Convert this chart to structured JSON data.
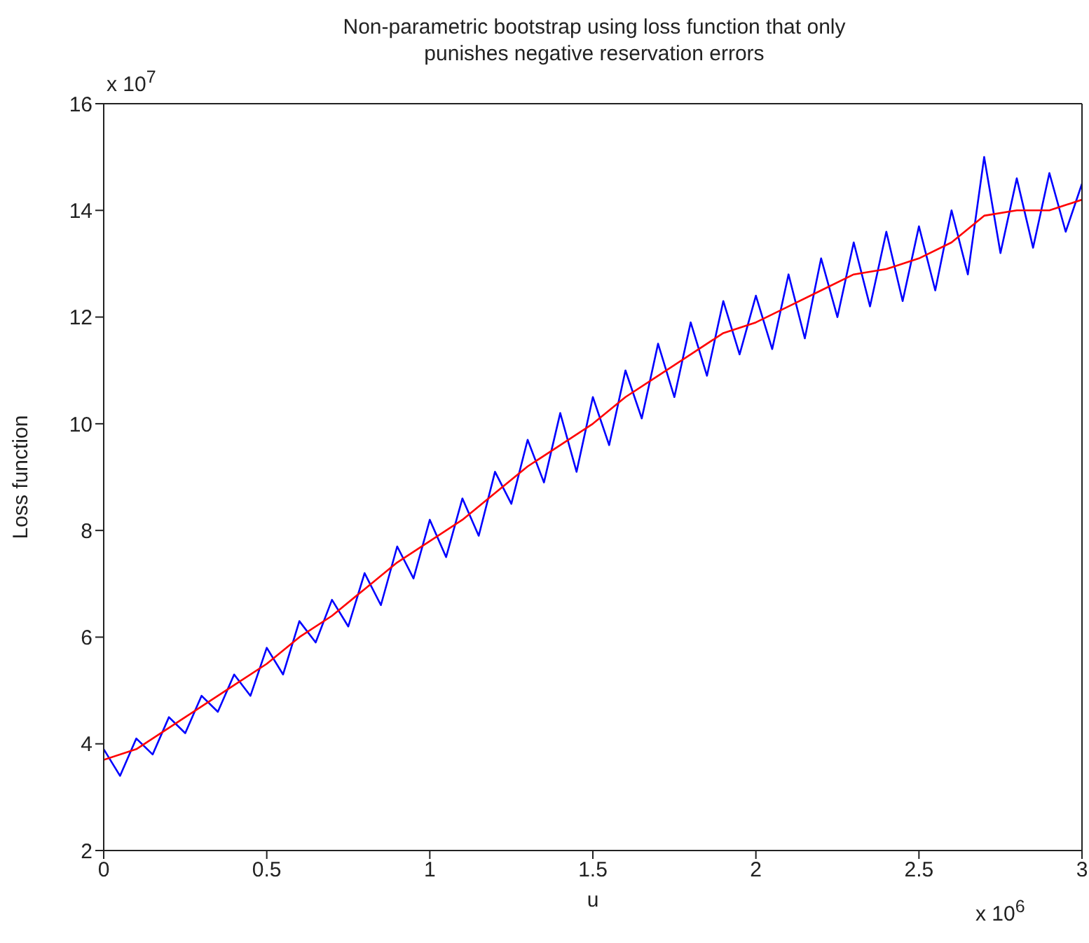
{
  "chart_data": {
    "type": "line",
    "title": "Non-parametric bootstrap using loss function that only punishes negative reservation errors",
    "xlabel": "u",
    "ylabel": "Loss function",
    "annotations": [
      "x 10$^{7}$",
      "x 10$^{6}$"
    ],
    "xlim": [
      0,
      3
    ],
    "xticks": [
      0,
      0.5,
      1,
      1.5,
      2,
      2.5,
      3
    ],
    "ylim": [
      2,
      16
    ],
    "yticks": [
      2,
      4,
      6,
      8,
      10,
      12,
      14,
      16
    ],
    "legend": false,
    "marker": "none",
    "line_style": "solid",
    "series": [
      {
        "color": "#0000ff",
        "x": [
          0,
          0.05,
          0.1,
          0.15,
          0.2,
          0.25,
          0.3,
          0.35,
          0.4,
          0.45,
          0.5,
          0.55,
          0.6,
          0.65,
          0.7,
          0.75,
          0.8,
          0.85,
          0.9,
          0.95,
          1.0,
          1.05,
          1.1,
          1.15,
          1.2,
          1.25,
          1.3,
          1.35,
          1.4,
          1.45,
          1.5,
          1.55,
          1.6,
          1.65,
          1.7,
          1.75,
          1.8,
          1.85,
          1.9,
          1.95,
          2.0,
          2.05,
          2.1,
          2.15,
          2.2,
          2.25,
          2.3,
          2.35,
          2.4,
          2.45,
          2.5,
          2.55,
          2.6,
          2.65,
          2.7,
          2.75,
          2.8,
          2.85,
          2.9,
          2.95,
          3.0
        ],
        "values": [
          3.9,
          3.4,
          4.1,
          3.8,
          4.5,
          4.2,
          4.9,
          4.6,
          5.3,
          4.9,
          5.8,
          5.3,
          6.3,
          5.9,
          6.7,
          6.2,
          7.2,
          6.6,
          7.7,
          7.1,
          8.2,
          7.5,
          8.6,
          7.9,
          9.1,
          8.5,
          9.7,
          8.9,
          10.2,
          9.1,
          10.5,
          9.6,
          11.0,
          10.1,
          11.5,
          10.5,
          11.9,
          10.9,
          12.3,
          11.3,
          12.4,
          11.4,
          12.8,
          11.6,
          13.1,
          12.0,
          13.4,
          12.2,
          13.6,
          12.3,
          13.7,
          12.5,
          14.0,
          12.8,
          15.0,
          13.2,
          14.6,
          13.3,
          14.7,
          13.6,
          14.5
        ]
      },
      {
        "color": "#ff0000",
        "x": [
          0,
          0.1,
          0.2,
          0.3,
          0.4,
          0.5,
          0.6,
          0.7,
          0.8,
          0.9,
          1.0,
          1.1,
          1.2,
          1.3,
          1.4,
          1.5,
          1.6,
          1.7,
          1.8,
          1.9,
          2.0,
          2.1,
          2.2,
          2.3,
          2.4,
          2.5,
          2.6,
          2.7,
          2.8,
          2.9,
          3.0
        ],
        "values": [
          3.7,
          3.9,
          4.3,
          4.7,
          5.1,
          5.5,
          6.0,
          6.4,
          6.9,
          7.4,
          7.8,
          8.2,
          8.7,
          9.2,
          9.6,
          10.0,
          10.5,
          10.9,
          11.3,
          11.7,
          11.9,
          12.2,
          12.5,
          12.8,
          12.9,
          13.1,
          13.4,
          13.9,
          14.0,
          14.0,
          14.2
        ]
      }
    ]
  }
}
